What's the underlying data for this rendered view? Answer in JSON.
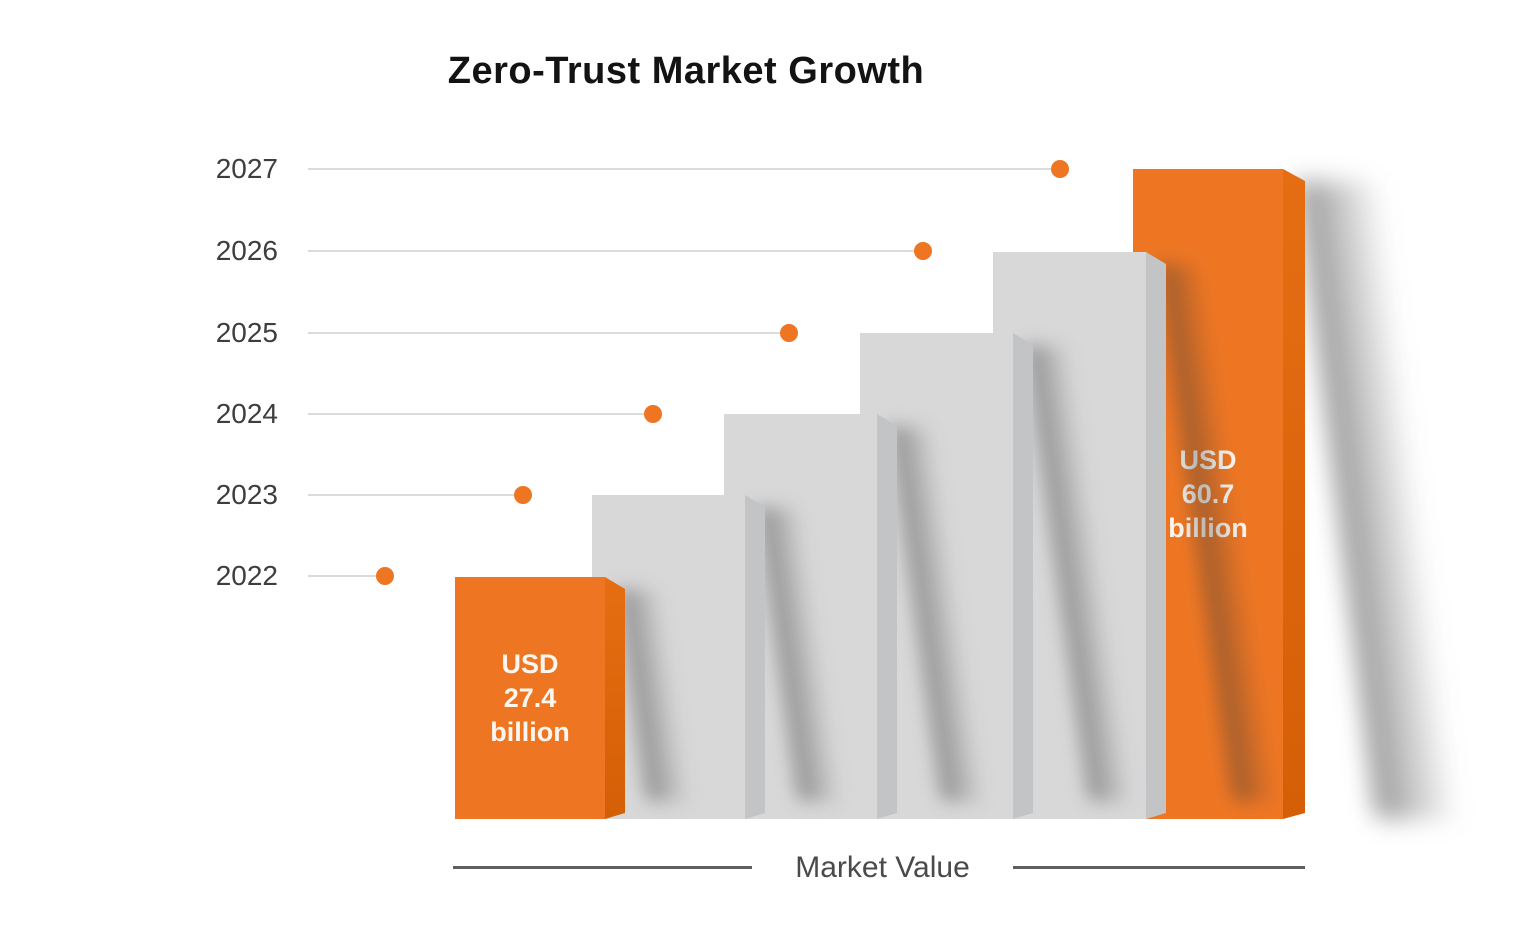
{
  "title": "Zero-Trust Market Growth",
  "x_axis_label": "Market Value",
  "colors": {
    "accent_orange": "#ee7623",
    "accent_orange_edge": "#d45f06",
    "bar_gray": "#d8d8d9",
    "bar_gray_edge": "#c2c4c6",
    "gridline": "#dbdbdb",
    "title_text": "#131313",
    "axis_text": "#3e3e3e",
    "bar_label_text": "#fbf6ef"
  },
  "axis": {
    "rows": [
      {
        "year": "2027"
      },
      {
        "year": "2026"
      },
      {
        "year": "2025"
      },
      {
        "year": "2024"
      },
      {
        "year": "2023"
      },
      {
        "year": "2022"
      }
    ]
  },
  "bars": [
    {
      "year": "2022",
      "color": "orange",
      "label": [
        "USD",
        "27.4",
        "billion"
      ]
    },
    {
      "year": "2023",
      "color": "gray",
      "label": []
    },
    {
      "year": "2024",
      "color": "gray",
      "label": []
    },
    {
      "year": "2025",
      "color": "gray",
      "label": []
    },
    {
      "year": "2026",
      "color": "gray",
      "label": []
    },
    {
      "year": "2027",
      "color": "orange",
      "label": [
        "USD",
        "60.7",
        "billion"
      ]
    }
  ],
  "chart_data": {
    "type": "bar",
    "title": "Zero-Trust Market Growth",
    "categories": [
      "2022",
      "2023",
      "2024",
      "2025",
      "2026",
      "2027"
    ],
    "values_usd_billion": [
      27.4,
      null,
      null,
      null,
      null,
      60.7
    ],
    "value_labels": [
      "USD 27.4 billion",
      "",
      "",
      "",
      "",
      "USD 60.7 billion"
    ],
    "highlighted_categories": [
      "2022",
      "2027"
    ],
    "xlabel": "Market Value",
    "ylabel": "",
    "y_ticks": [
      "2022",
      "2023",
      "2024",
      "2025",
      "2026",
      "2027"
    ],
    "grid": "horizontal year gridlines, each ending in an orange dot",
    "legend_position": "none",
    "style_notes": "3D extruded bars rising stepwise; first and last bars orange with value labels, middle bars gray; bar tops align with their year gridline"
  }
}
